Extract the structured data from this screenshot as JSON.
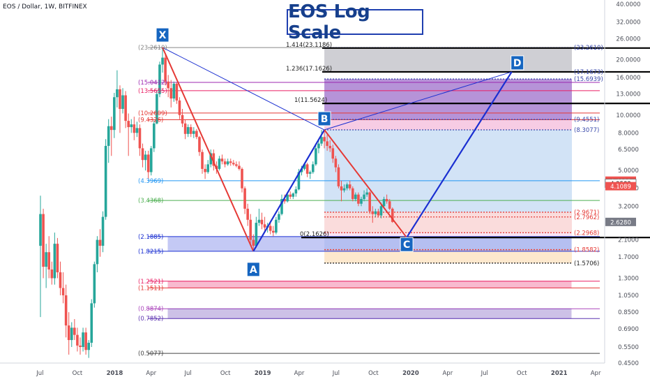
{
  "header": {
    "symbol_label": "EOS / Dollar, 1W, BITFINEX"
  },
  "title": "EOS Log Scale",
  "colors": {
    "up": "#26a69a",
    "down": "#ef5350",
    "pattern_red": "#e53935",
    "pattern_blue": "#1a2fd1",
    "purple_zone": "#7a3ab8",
    "blue_zone": "#cde0f5",
    "grey_zone": "#c7c7cc",
    "marker": "#1565c0"
  },
  "chart_data": {
    "type": "candlestick",
    "scale": "log",
    "ylim": [
      0.45,
      40
    ],
    "y_ticks": [
      "40.0000",
      "32.0000",
      "26.0000",
      "20.0000",
      "16.0000",
      "13.0000",
      "10.0000",
      "8.0000",
      "6.5000",
      "5.0000",
      "4.0000",
      "3.2000",
      "2.1000",
      "1.7000",
      "1.3000",
      "1.0500",
      "0.8500",
      "0.6900",
      "0.5500",
      "0.4500"
    ],
    "x_ticks": [
      "Jul",
      "Oct",
      "2018",
      "Apr",
      "Jul",
      "Oct",
      "2019",
      "Apr",
      "Jul",
      "Oct",
      "2020",
      "Apr",
      "Jul",
      "Oct",
      "2021",
      "Apr"
    ],
    "price_tags": [
      {
        "text": "4.4022",
        "color": "#ef5350"
      },
      {
        "text": "4.2582",
        "color": "#ffffff"
      },
      {
        "text": "4.1089",
        "color": "#ef5350"
      },
      {
        "text": "2.6280",
        "color": "#787b86"
      }
    ],
    "xabcd": [
      {
        "label": "X",
        "date": "2018-04-29",
        "price": 23.261
      },
      {
        "label": "A",
        "date": "2018-12-09",
        "price": 1.8215
      },
      {
        "label": "B",
        "date": "2019-06-02",
        "price": 8.3077
      },
      {
        "label": "C",
        "date": "2019-12-22",
        "price": 2.1626
      },
      {
        "label": "D",
        "date": "2020-09-06",
        "price": 17.1626
      }
    ],
    "fib_levels_left": [
      "(23.2610)",
      "(15.0412)",
      "(13.5655)",
      "(10.2609)",
      "(9.4326)",
      "(4.3969)",
      "(3.4368)",
      "(2.1885)",
      "(1.8215)",
      "(1.2521)",
      "(1.1511)",
      "(0.8874)",
      "(0.7852)",
      "(0.5077)"
    ],
    "fib_levels_right": [
      "1.414(23.1186)",
      "1.236(17.1626)",
      "1(11.5624)",
      "0(2.1626)"
    ],
    "fib_levels_far": [
      "(23.2610)",
      "(17.1673)",
      "(15.6939)",
      "(9.4551)",
      "(8.3077)",
      "(2.9671)",
      "(2.7962)",
      "(2.2968)",
      "(1.8582)",
      "(1.5706)"
    ],
    "candles": [
      {
        "date": "2017-07-02",
        "o": 1.95,
        "h": 3.65,
        "l": 0.8,
        "c": 2.9
      },
      {
        "date": "2017-07-09",
        "o": 2.9,
        "h": 3.1,
        "l": 1.3,
        "c": 1.5
      },
      {
        "date": "2017-07-16",
        "o": 1.5,
        "h": 2.0,
        "l": 1.15,
        "c": 1.8
      },
      {
        "date": "2017-07-23",
        "o": 1.8,
        "h": 2.2,
        "l": 1.3,
        "c": 1.45
      },
      {
        "date": "2017-07-30",
        "o": 1.45,
        "h": 1.6,
        "l": 1.2,
        "c": 1.3
      },
      {
        "date": "2017-08-06",
        "o": 1.3,
        "h": 2.3,
        "l": 1.2,
        "c": 2.0
      },
      {
        "date": "2017-08-13",
        "o": 2.0,
        "h": 2.15,
        "l": 1.3,
        "c": 1.4
      },
      {
        "date": "2017-08-20",
        "o": 1.4,
        "h": 1.6,
        "l": 1.05,
        "c": 1.15
      },
      {
        "date": "2017-08-27",
        "o": 1.15,
        "h": 1.4,
        "l": 0.95,
        "c": 1.05
      },
      {
        "date": "2017-09-03",
        "o": 1.05,
        "h": 1.2,
        "l": 0.62,
        "c": 0.72
      },
      {
        "date": "2017-09-10",
        "o": 0.72,
        "h": 0.85,
        "l": 0.5,
        "c": 0.6
      },
      {
        "date": "2017-09-17",
        "o": 0.6,
        "h": 0.75,
        "l": 0.55,
        "c": 0.7
      },
      {
        "date": "2017-09-24",
        "o": 0.7,
        "h": 0.78,
        "l": 0.6,
        "c": 0.64
      },
      {
        "date": "2017-10-01",
        "o": 0.64,
        "h": 0.7,
        "l": 0.52,
        "c": 0.56
      },
      {
        "date": "2017-10-08",
        "o": 0.56,
        "h": 0.62,
        "l": 0.5,
        "c": 0.55
      },
      {
        "date": "2017-10-15",
        "o": 0.55,
        "h": 0.7,
        "l": 0.52,
        "c": 0.66
      },
      {
        "date": "2017-10-22",
        "o": 0.66,
        "h": 0.7,
        "l": 0.5,
        "c": 0.53
      },
      {
        "date": "2017-10-29",
        "o": 0.53,
        "h": 0.6,
        "l": 0.48,
        "c": 0.58
      },
      {
        "date": "2017-11-05",
        "o": 0.58,
        "h": 1.0,
        "l": 0.55,
        "c": 0.95
      },
      {
        "date": "2017-11-12",
        "o": 0.95,
        "h": 1.6,
        "l": 0.9,
        "c": 1.55
      },
      {
        "date": "2017-11-19",
        "o": 1.55,
        "h": 2.2,
        "l": 1.4,
        "c": 2.1
      },
      {
        "date": "2017-11-26",
        "o": 2.1,
        "h": 2.4,
        "l": 1.7,
        "c": 1.95
      },
      {
        "date": "2017-12-03",
        "o": 1.95,
        "h": 3.0,
        "l": 1.8,
        "c": 2.8
      },
      {
        "date": "2017-12-10",
        "o": 2.8,
        "h": 7.4,
        "l": 2.7,
        "c": 6.8
      },
      {
        "date": "2017-12-17",
        "o": 6.8,
        "h": 9.5,
        "l": 5.5,
        "c": 8.7
      },
      {
        "date": "2017-12-24",
        "o": 8.7,
        "h": 9.8,
        "l": 6.0,
        "c": 8.3
      },
      {
        "date": "2017-12-31",
        "o": 8.3,
        "h": 13.2,
        "l": 7.5,
        "c": 12.5
      },
      {
        "date": "2018-01-07",
        "o": 12.5,
        "h": 17.5,
        "l": 11.0,
        "c": 13.8
      },
      {
        "date": "2018-01-14",
        "o": 13.8,
        "h": 14.5,
        "l": 8.0,
        "c": 10.8
      },
      {
        "date": "2018-01-21",
        "o": 10.8,
        "h": 14.0,
        "l": 10.2,
        "c": 12.8
      },
      {
        "date": "2018-01-28",
        "o": 12.8,
        "h": 13.5,
        "l": 8.5,
        "c": 9.3
      },
      {
        "date": "2018-02-04",
        "o": 9.3,
        "h": 10.2,
        "l": 6.0,
        "c": 8.6
      },
      {
        "date": "2018-02-11",
        "o": 8.6,
        "h": 9.5,
        "l": 8.0,
        "c": 8.9
      },
      {
        "date": "2018-02-18",
        "o": 8.9,
        "h": 9.8,
        "l": 7.3,
        "c": 8.0
      },
      {
        "date": "2018-02-25",
        "o": 8.0,
        "h": 9.2,
        "l": 7.6,
        "c": 8.5
      },
      {
        "date": "2018-03-04",
        "o": 8.5,
        "h": 8.9,
        "l": 6.0,
        "c": 6.6
      },
      {
        "date": "2018-03-11",
        "o": 6.6,
        "h": 7.0,
        "l": 5.2,
        "c": 5.7
      },
      {
        "date": "2018-03-18",
        "o": 5.7,
        "h": 6.4,
        "l": 5.0,
        "c": 6.1
      },
      {
        "date": "2018-03-25",
        "o": 6.1,
        "h": 6.4,
        "l": 4.5,
        "c": 4.9
      },
      {
        "date": "2018-04-01",
        "o": 4.9,
        "h": 6.8,
        "l": 4.7,
        "c": 6.6
      },
      {
        "date": "2018-04-08",
        "o": 6.6,
        "h": 9.3,
        "l": 6.3,
        "c": 9.0
      },
      {
        "date": "2018-04-15",
        "o": 9.0,
        "h": 13.5,
        "l": 8.9,
        "c": 13.0
      },
      {
        "date": "2018-04-22",
        "o": 13.0,
        "h": 19.5,
        "l": 12.5,
        "c": 18.8
      },
      {
        "date": "2018-04-29",
        "o": 18.8,
        "h": 23.26,
        "l": 17.0,
        "c": 20.5
      },
      {
        "date": "2018-05-06",
        "o": 20.5,
        "h": 21.5,
        "l": 14.5,
        "c": 15.2
      },
      {
        "date": "2018-05-13",
        "o": 15.2,
        "h": 16.5,
        "l": 12.5,
        "c": 14.0
      },
      {
        "date": "2018-05-20",
        "o": 14.0,
        "h": 15.5,
        "l": 11.0,
        "c": 12.3
      },
      {
        "date": "2018-05-27",
        "o": 12.3,
        "h": 15.2,
        "l": 11.8,
        "c": 14.8
      },
      {
        "date": "2018-06-03",
        "o": 14.8,
        "h": 15.0,
        "l": 11.5,
        "c": 12.0
      },
      {
        "date": "2018-06-10",
        "o": 12.0,
        "h": 12.5,
        "l": 9.5,
        "c": 10.0
      },
      {
        "date": "2018-06-17",
        "o": 10.0,
        "h": 10.8,
        "l": 8.6,
        "c": 9.0
      },
      {
        "date": "2018-06-24",
        "o": 9.0,
        "h": 9.4,
        "l": 7.4,
        "c": 7.9
      },
      {
        "date": "2018-07-01",
        "o": 7.9,
        "h": 8.9,
        "l": 7.6,
        "c": 8.6
      },
      {
        "date": "2018-07-08",
        "o": 8.6,
        "h": 8.9,
        "l": 7.6,
        "c": 7.9
      },
      {
        "date": "2018-07-15",
        "o": 7.9,
        "h": 8.6,
        "l": 7.5,
        "c": 8.2
      },
      {
        "date": "2018-07-22",
        "o": 8.2,
        "h": 8.4,
        "l": 7.4,
        "c": 7.6
      },
      {
        "date": "2018-07-29",
        "o": 7.6,
        "h": 7.7,
        "l": 6.0,
        "c": 6.3
      },
      {
        "date": "2018-08-05",
        "o": 6.3,
        "h": 6.5,
        "l": 4.8,
        "c": 5.1
      },
      {
        "date": "2018-08-12",
        "o": 5.1,
        "h": 5.4,
        "l": 4.5,
        "c": 4.9
      },
      {
        "date": "2018-08-19",
        "o": 4.9,
        "h": 5.7,
        "l": 4.8,
        "c": 5.4
      },
      {
        "date": "2018-08-26",
        "o": 5.4,
        "h": 6.5,
        "l": 5.2,
        "c": 6.2
      },
      {
        "date": "2018-09-02",
        "o": 6.2,
        "h": 6.5,
        "l": 5.0,
        "c": 5.3
      },
      {
        "date": "2018-09-09",
        "o": 5.3,
        "h": 5.6,
        "l": 4.8,
        "c": 5.1
      },
      {
        "date": "2018-09-16",
        "o": 5.1,
        "h": 6.0,
        "l": 5.0,
        "c": 5.8
      },
      {
        "date": "2018-09-23",
        "o": 5.8,
        "h": 6.1,
        "l": 5.4,
        "c": 5.6
      },
      {
        "date": "2018-09-30",
        "o": 5.6,
        "h": 5.8,
        "l": 5.2,
        "c": 5.4
      },
      {
        "date": "2018-10-07",
        "o": 5.4,
        "h": 5.8,
        "l": 5.3,
        "c": 5.6
      },
      {
        "date": "2018-10-14",
        "o": 5.6,
        "h": 5.8,
        "l": 5.3,
        "c": 5.5
      },
      {
        "date": "2018-10-21",
        "o": 5.5,
        "h": 5.7,
        "l": 5.3,
        "c": 5.4
      },
      {
        "date": "2018-10-28",
        "o": 5.4,
        "h": 5.6,
        "l": 5.2,
        "c": 5.3
      },
      {
        "date": "2018-11-04",
        "o": 5.3,
        "h": 5.6,
        "l": 5.0,
        "c": 5.1
      },
      {
        "date": "2018-11-11",
        "o": 5.1,
        "h": 5.2,
        "l": 3.8,
        "c": 4.0
      },
      {
        "date": "2018-11-18",
        "o": 4.0,
        "h": 4.1,
        "l": 2.9,
        "c": 3.1
      },
      {
        "date": "2018-11-25",
        "o": 3.1,
        "h": 3.3,
        "l": 2.5,
        "c": 2.7
      },
      {
        "date": "2018-12-02",
        "o": 2.7,
        "h": 2.9,
        "l": 2.0,
        "c": 2.1
      },
      {
        "date": "2018-12-09",
        "o": 2.1,
        "h": 2.25,
        "l": 1.82,
        "c": 1.95
      },
      {
        "date": "2018-12-16",
        "o": 1.95,
        "h": 2.8,
        "l": 1.9,
        "c": 2.6
      },
      {
        "date": "2018-12-23",
        "o": 2.6,
        "h": 3.1,
        "l": 2.5,
        "c": 2.7
      },
      {
        "date": "2018-12-30",
        "o": 2.7,
        "h": 2.95,
        "l": 2.4,
        "c": 2.55
      },
      {
        "date": "2019-01-06",
        "o": 2.55,
        "h": 2.8,
        "l": 2.35,
        "c": 2.45
      },
      {
        "date": "2019-01-13",
        "o": 2.45,
        "h": 2.6,
        "l": 2.3,
        "c": 2.5
      },
      {
        "date": "2019-01-20",
        "o": 2.5,
        "h": 2.6,
        "l": 2.25,
        "c": 2.35
      },
      {
        "date": "2019-01-27",
        "o": 2.35,
        "h": 2.5,
        "l": 2.2,
        "c": 2.3
      },
      {
        "date": "2019-02-03",
        "o": 2.3,
        "h": 2.8,
        "l": 2.25,
        "c": 2.7
      },
      {
        "date": "2019-02-10",
        "o": 2.7,
        "h": 3.0,
        "l": 2.6,
        "c": 2.9
      },
      {
        "date": "2019-02-17",
        "o": 2.9,
        "h": 3.7,
        "l": 2.85,
        "c": 3.5
      },
      {
        "date": "2019-02-24",
        "o": 3.5,
        "h": 3.7,
        "l": 3.3,
        "c": 3.4
      },
      {
        "date": "2019-03-03",
        "o": 3.4,
        "h": 3.8,
        "l": 3.35,
        "c": 3.7
      },
      {
        "date": "2019-03-10",
        "o": 3.7,
        "h": 3.85,
        "l": 3.5,
        "c": 3.6
      },
      {
        "date": "2019-03-17",
        "o": 3.6,
        "h": 3.8,
        "l": 3.5,
        "c": 3.75
      },
      {
        "date": "2019-03-24",
        "o": 3.75,
        "h": 4.1,
        "l": 3.6,
        "c": 3.95
      },
      {
        "date": "2019-03-31",
        "o": 3.95,
        "h": 5.1,
        "l": 3.9,
        "c": 4.9
      },
      {
        "date": "2019-04-07",
        "o": 4.9,
        "h": 5.3,
        "l": 4.7,
        "c": 5.1
      },
      {
        "date": "2019-04-14",
        "o": 5.1,
        "h": 5.5,
        "l": 5.0,
        "c": 5.4
      },
      {
        "date": "2019-04-21",
        "o": 5.4,
        "h": 5.5,
        "l": 4.6,
        "c": 4.8
      },
      {
        "date": "2019-04-28",
        "o": 4.8,
        "h": 5.0,
        "l": 4.5,
        "c": 4.9
      },
      {
        "date": "2019-05-05",
        "o": 4.9,
        "h": 5.6,
        "l": 4.8,
        "c": 5.4
      },
      {
        "date": "2019-05-12",
        "o": 5.4,
        "h": 7.0,
        "l": 5.3,
        "c": 6.6
      },
      {
        "date": "2019-05-19",
        "o": 6.6,
        "h": 7.4,
        "l": 6.2,
        "c": 7.0
      },
      {
        "date": "2019-05-26",
        "o": 7.0,
        "h": 8.3,
        "l": 6.8,
        "c": 7.6
      },
      {
        "date": "2019-06-02",
        "o": 7.6,
        "h": 8.3,
        "l": 6.6,
        "c": 7.2
      },
      {
        "date": "2019-06-09",
        "o": 7.2,
        "h": 7.8,
        "l": 6.4,
        "c": 6.8
      },
      {
        "date": "2019-06-16",
        "o": 6.8,
        "h": 7.3,
        "l": 6.3,
        "c": 6.6
      },
      {
        "date": "2019-06-23",
        "o": 6.6,
        "h": 6.9,
        "l": 5.5,
        "c": 5.8
      },
      {
        "date": "2019-06-30",
        "o": 5.8,
        "h": 6.0,
        "l": 4.9,
        "c": 5.2
      },
      {
        "date": "2019-07-07",
        "o": 5.2,
        "h": 5.4,
        "l": 4.0,
        "c": 4.1
      },
      {
        "date": "2019-07-14",
        "o": 4.1,
        "h": 4.4,
        "l": 3.4,
        "c": 3.9
      },
      {
        "date": "2019-07-21",
        "o": 3.9,
        "h": 4.2,
        "l": 3.8,
        "c": 4.0
      },
      {
        "date": "2019-07-28",
        "o": 4.0,
        "h": 4.3,
        "l": 3.9,
        "c": 4.2
      },
      {
        "date": "2019-08-04",
        "o": 4.2,
        "h": 4.4,
        "l": 3.9,
        "c": 4.0
      },
      {
        "date": "2019-08-11",
        "o": 4.0,
        "h": 4.1,
        "l": 3.4,
        "c": 3.5
      },
      {
        "date": "2019-08-18",
        "o": 3.5,
        "h": 3.8,
        "l": 3.4,
        "c": 3.7
      },
      {
        "date": "2019-08-25",
        "o": 3.7,
        "h": 3.8,
        "l": 3.2,
        "c": 3.3
      },
      {
        "date": "2019-09-01",
        "o": 3.3,
        "h": 3.6,
        "l": 3.2,
        "c": 3.5
      },
      {
        "date": "2019-09-08",
        "o": 3.5,
        "h": 3.9,
        "l": 3.4,
        "c": 3.7
      },
      {
        "date": "2019-09-15",
        "o": 3.7,
        "h": 4.0,
        "l": 3.6,
        "c": 3.8
      },
      {
        "date": "2019-09-22",
        "o": 3.8,
        "h": 3.85,
        "l": 2.9,
        "c": 3.0
      },
      {
        "date": "2019-09-29",
        "o": 3.0,
        "h": 3.2,
        "l": 2.6,
        "c": 2.9
      },
      {
        "date": "2019-10-06",
        "o": 2.9,
        "h": 3.1,
        "l": 2.8,
        "c": 3.0
      },
      {
        "date": "2019-10-13",
        "o": 3.0,
        "h": 3.1,
        "l": 2.8,
        "c": 2.85
      },
      {
        "date": "2019-10-20",
        "o": 2.85,
        "h": 3.35,
        "l": 2.75,
        "c": 3.2
      },
      {
        "date": "2019-10-27",
        "o": 3.2,
        "h": 3.6,
        "l": 3.1,
        "c": 3.5
      },
      {
        "date": "2019-11-03",
        "o": 3.5,
        "h": 3.7,
        "l": 3.3,
        "c": 3.4
      },
      {
        "date": "2019-11-10",
        "o": 3.4,
        "h": 3.5,
        "l": 3.05,
        "c": 3.1
      },
      {
        "date": "2019-11-17",
        "o": 3.1,
        "h": 3.15,
        "l": 2.6,
        "c": 2.628
      }
    ]
  }
}
